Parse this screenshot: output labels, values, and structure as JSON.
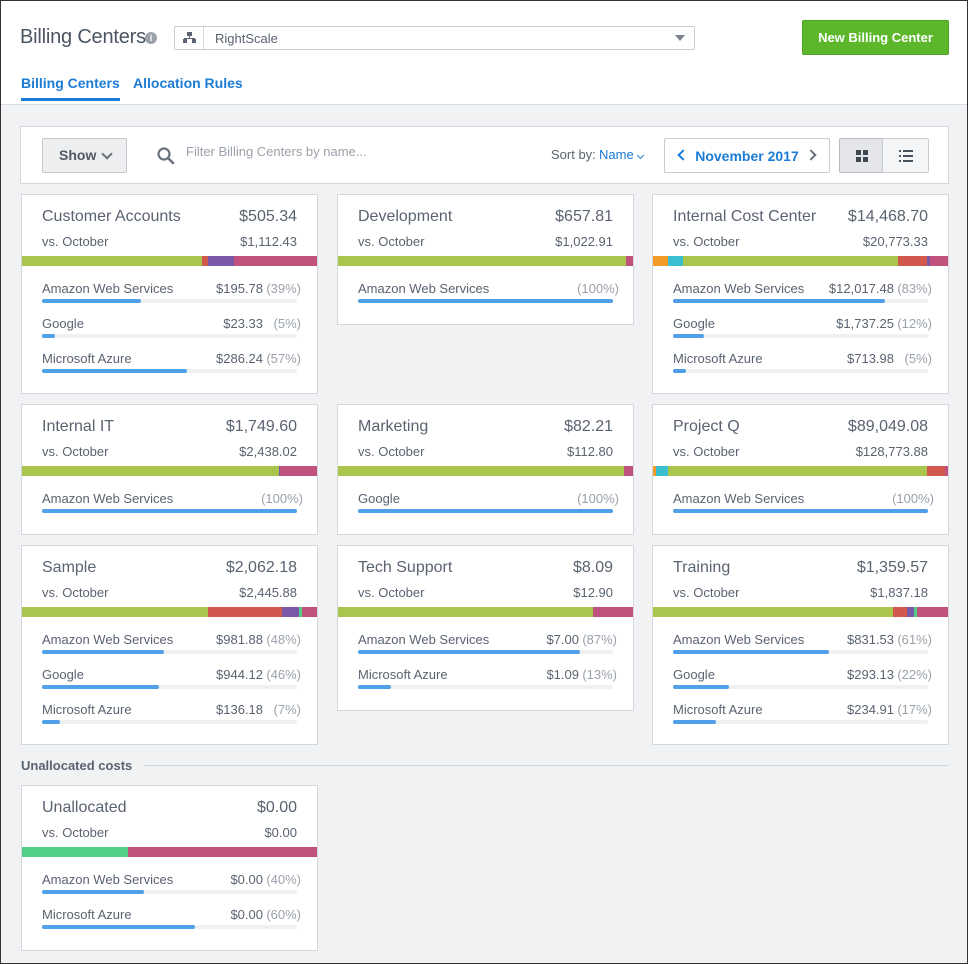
{
  "header": {
    "title": "Billing Centers",
    "org_select": {
      "value": "RightScale"
    },
    "new_button": "New Billing Center",
    "tabs": [
      {
        "label": "Billing Centers",
        "active": true
      },
      {
        "label": "Allocation Rules",
        "active": false
      }
    ]
  },
  "toolbar": {
    "show_label": "Show",
    "search_placeholder": "Filter Billing Centers by name...",
    "sort_label": "Sort by:",
    "sort_value": "Name",
    "period": "November 2017",
    "view_mode": "grid"
  },
  "colors": {
    "accent": "#1c7cd6",
    "new_button": "#5cb82a",
    "progress": "#4f9fe9",
    "segment_green": "#a9c54b",
    "segment_red": "#d0584c",
    "segment_purple": "#7a59a8",
    "segment_pink": "#c0527d",
    "segment_orange": "#f39a28",
    "segment_teal": "#3bbed0",
    "segment_mint": "#52cf86"
  },
  "billing_centers": [
    {
      "name": "Customer Accounts",
      "total": "$505.34",
      "vs_label": "vs. October",
      "prev": "$1,112.43",
      "segments": [
        {
          "color": "#a9c54b",
          "share": 0.61
        },
        {
          "color": "#d0584c",
          "share": 0.02
        },
        {
          "color": "#7a59a8",
          "share": 0.09
        },
        {
          "color": "#c0527d",
          "share": 0.28
        }
      ],
      "providers": [
        {
          "name": "Amazon Web Services",
          "amount": "$195.78",
          "pct": "(39%)",
          "share": 0.39
        },
        {
          "name": "Google",
          "amount": "$23.33",
          "pct": "(5%)",
          "share": 0.05
        },
        {
          "name": "Microsoft Azure",
          "amount": "$286.24",
          "pct": "(57%)",
          "share": 0.57
        }
      ]
    },
    {
      "name": "Development",
      "total": "$657.81",
      "vs_label": "vs. October",
      "prev": "$1,022.91",
      "segments": [
        {
          "color": "#a9c54b",
          "share": 0.975
        },
        {
          "color": "#c0527d",
          "share": 0.025
        }
      ],
      "providers": [
        {
          "name": "Amazon Web Services",
          "amount": "",
          "pct": "(100%)",
          "share": 1.0
        }
      ]
    },
    {
      "name": "Internal Cost Center",
      "total": "$14,468.70",
      "vs_label": "vs. October",
      "prev": "$20,773.33",
      "segments": [
        {
          "color": "#f39a28",
          "share": 0.05
        },
        {
          "color": "#3bbed0",
          "share": 0.05
        },
        {
          "color": "#a9c54b",
          "share": 0.73
        },
        {
          "color": "#d0584c",
          "share": 0.1
        },
        {
          "color": "#7a59a8",
          "share": 0.01
        },
        {
          "color": "#c0527d",
          "share": 0.06
        }
      ],
      "providers": [
        {
          "name": "Amazon Web Services",
          "amount": "$12,017.48",
          "pct": "(83%)",
          "share": 0.83
        },
        {
          "name": "Google",
          "amount": "$1,737.25",
          "pct": "(12%)",
          "share": 0.12
        },
        {
          "name": "Microsoft Azure",
          "amount": "$713.98",
          "pct": "(5%)",
          "share": 0.05
        }
      ]
    },
    {
      "name": "Internal IT",
      "total": "$1,749.60",
      "vs_label": "vs. October",
      "prev": "$2,438.02",
      "segments": [
        {
          "color": "#a9c54b",
          "share": 0.87
        },
        {
          "color": "#7a59a8",
          "share": 0.005
        },
        {
          "color": "#c0527d",
          "share": 0.125
        }
      ],
      "providers": [
        {
          "name": "Amazon Web Services",
          "amount": "",
          "pct": "(100%)",
          "share": 1.0
        }
      ]
    },
    {
      "name": "Marketing",
      "total": "$82.21",
      "vs_label": "vs. October",
      "prev": "$112.80",
      "segments": [
        {
          "color": "#a9c54b",
          "share": 0.97
        },
        {
          "color": "#c0527d",
          "share": 0.03
        }
      ],
      "providers": [
        {
          "name": "Google",
          "amount": "",
          "pct": "(100%)",
          "share": 1.0
        }
      ]
    },
    {
      "name": "Project Q",
      "total": "$89,049.08",
      "vs_label": "vs. October",
      "prev": "$128,773.88",
      "segments": [
        {
          "color": "#f39a28",
          "share": 0.01
        },
        {
          "color": "#3bbed0",
          "share": 0.04
        },
        {
          "color": "#a9c54b",
          "share": 0.88
        },
        {
          "color": "#d0584c",
          "share": 0.06
        },
        {
          "color": "#c0527d",
          "share": 0.01
        }
      ],
      "providers": [
        {
          "name": "Amazon Web Services",
          "amount": "",
          "pct": "(100%)",
          "share": 1.0
        }
      ]
    },
    {
      "name": "Sample",
      "total": "$2,062.18",
      "vs_label": "vs. October",
      "prev": "$2,445.88",
      "segments": [
        {
          "color": "#a9c54b",
          "share": 0.63
        },
        {
          "color": "#d0584c",
          "share": 0.25
        },
        {
          "color": "#7a59a8",
          "share": 0.06
        },
        {
          "color": "#52cf86",
          "share": 0.01
        },
        {
          "color": "#c0527d",
          "share": 0.05
        }
      ],
      "providers": [
        {
          "name": "Amazon Web Services",
          "amount": "$981.88",
          "pct": "(48%)",
          "share": 0.48
        },
        {
          "name": "Google",
          "amount": "$944.12",
          "pct": "(46%)",
          "share": 0.46
        },
        {
          "name": "Microsoft Azure",
          "amount": "$136.18",
          "pct": "(7%)",
          "share": 0.07
        }
      ]
    },
    {
      "name": "Tech Support",
      "total": "$8.09",
      "vs_label": "vs. October",
      "prev": "$12.90",
      "segments": [
        {
          "color": "#a9c54b",
          "share": 0.865
        },
        {
          "color": "#c0527d",
          "share": 0.135
        }
      ],
      "providers": [
        {
          "name": "Amazon Web Services",
          "amount": "$7.00",
          "pct": "(87%)",
          "share": 0.87
        },
        {
          "name": "Microsoft Azure",
          "amount": "$1.09",
          "pct": "(13%)",
          "share": 0.13
        }
      ]
    },
    {
      "name": "Training",
      "total": "$1,359.57",
      "vs_label": "vs. October",
      "prev": "$1,837.18",
      "segments": [
        {
          "color": "#a9c54b",
          "share": 0.815
        },
        {
          "color": "#d0584c",
          "share": 0.045
        },
        {
          "color": "#7a59a8",
          "share": 0.025
        },
        {
          "color": "#52cf86",
          "share": 0.01
        },
        {
          "color": "#c0527d",
          "share": 0.105
        }
      ],
      "providers": [
        {
          "name": "Amazon Web Services",
          "amount": "$831.53",
          "pct": "(61%)",
          "share": 0.61
        },
        {
          "name": "Google",
          "amount": "$293.13",
          "pct": "(22%)",
          "share": 0.22
        },
        {
          "name": "Microsoft Azure",
          "amount": "$234.91",
          "pct": "(17%)",
          "share": 0.17
        }
      ]
    }
  ],
  "unallocated": {
    "section_title": "Unallocated costs",
    "card": {
      "name": "Unallocated",
      "total": "$0.00",
      "vs_label": "vs. October",
      "prev": "$0.00",
      "segments": [
        {
          "color": "#52cf86",
          "share": 0.36
        },
        {
          "color": "#c0527d",
          "share": 0.64
        }
      ],
      "providers": [
        {
          "name": "Amazon Web Services",
          "amount": "$0.00",
          "pct": "(40%)",
          "share": 0.4
        },
        {
          "name": "Microsoft Azure",
          "amount": "$0.00",
          "pct": "(60%)",
          "share": 0.6
        }
      ]
    }
  }
}
